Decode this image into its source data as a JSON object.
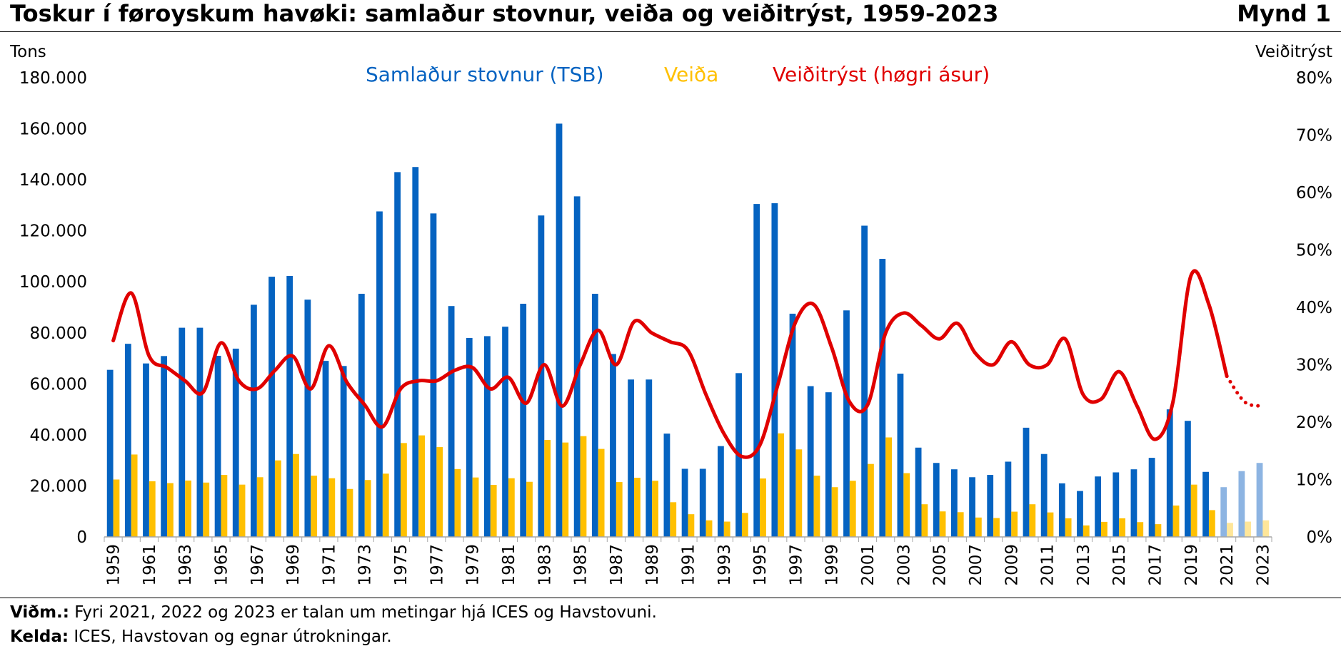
{
  "header": {
    "title": "Toskur í føroyskum havøki: samlaður stovnur, veiða og veiðitrýst, 1959-2023",
    "figure_label": "Mynd 1"
  },
  "notes": {
    "note_label": "Viðm.:",
    "note_text": "Fyri 2021, 2022 og 2023 er talan um metingar hjá ICES og Havstovuni.",
    "source_label": "Kelda:",
    "source_text": "ICES, Havstovan og egnar útrokningar."
  },
  "chart_data": {
    "type": "bar",
    "left_axis_label": "Tons",
    "right_axis_label": "Veiðitrýst",
    "ylim_left": [
      0,
      180000
    ],
    "ylim_right": [
      0,
      80
    ],
    "left_ticks": [
      "0",
      "20.000",
      "40.000",
      "60.000",
      "80.000",
      "100.000",
      "120.000",
      "140.000",
      "160.000",
      "180.000"
    ],
    "right_ticks": [
      "0%",
      "10%",
      "20%",
      "30%",
      "40%",
      "50%",
      "60%",
      "70%",
      "80%"
    ],
    "x_tick_labels": [
      "1959",
      "1961",
      "1963",
      "1965",
      "1967",
      "1969",
      "1971",
      "1973",
      "1975",
      "1977",
      "1979",
      "1981",
      "1983",
      "1985",
      "1987",
      "1989",
      "1991",
      "1993",
      "1995",
      "1997",
      "1999",
      "2001",
      "2003",
      "2005",
      "2007",
      "2009",
      "2011",
      "2013",
      "2015",
      "2017",
      "2019",
      "2021",
      "2023"
    ],
    "years": [
      1959,
      1960,
      1961,
      1962,
      1963,
      1964,
      1965,
      1966,
      1967,
      1968,
      1969,
      1970,
      1971,
      1972,
      1973,
      1974,
      1975,
      1976,
      1977,
      1978,
      1979,
      1980,
      1981,
      1982,
      1983,
      1984,
      1985,
      1986,
      1987,
      1988,
      1989,
      1990,
      1991,
      1992,
      1993,
      1994,
      1995,
      1996,
      1997,
      1998,
      1999,
      2000,
      2001,
      2002,
      2003,
      2004,
      2005,
      2006,
      2007,
      2008,
      2009,
      2010,
      2011,
      2012,
      2013,
      2014,
      2015,
      2016,
      2017,
      2018,
      2019,
      2020,
      2021,
      2022,
      2023
    ],
    "estimate_years_from": 2021,
    "legend": "top",
    "grid": false,
    "series": [
      {
        "name": "Samlaður stovnur (TSB)",
        "type": "bar",
        "axis": "left",
        "color": "#0563C1",
        "estimate_color": "#8DB4E2",
        "values": [
          65500,
          75700,
          68000,
          70900,
          82000,
          82000,
          71000,
          73800,
          91000,
          102000,
          102300,
          93000,
          69000,
          67000,
          95300,
          127600,
          143000,
          145000,
          126800,
          90500,
          78000,
          78700,
          82400,
          91400,
          126000,
          162000,
          133500,
          95300,
          71700,
          61700,
          61700,
          40500,
          26700,
          26700,
          35600,
          64200,
          130500,
          130800,
          87500,
          59100,
          56700,
          88800,
          122000,
          109000,
          64000,
          35000,
          29000,
          26500,
          23400,
          24300,
          29500,
          42800,
          32500,
          21000,
          18000,
          23700,
          25300,
          26500,
          31000,
          50000,
          45500,
          25500,
          19500,
          25800,
          29000
        ]
      },
      {
        "name": "Veiða",
        "type": "bar",
        "axis": "left",
        "color": "#FFC000",
        "estimate_color": "#FFE699",
        "values": [
          22500,
          32300,
          21800,
          21100,
          22100,
          21300,
          24300,
          20500,
          23400,
          30000,
          32500,
          24000,
          23000,
          18800,
          22300,
          24800,
          36800,
          39800,
          35200,
          26600,
          23300,
          20400,
          23000,
          21600,
          38000,
          37000,
          39500,
          34500,
          21500,
          23200,
          22000,
          13600,
          8900,
          6500,
          6000,
          9400,
          22900,
          40600,
          34300,
          24000,
          19500,
          22000,
          28600,
          39000,
          25000,
          12800,
          10000,
          9700,
          7600,
          7400,
          9900,
          12800,
          9600,
          7300,
          4500,
          5900,
          7300,
          5800,
          5000,
          12300,
          20500,
          10500,
          5500,
          6000,
          6500
        ]
      },
      {
        "name": "Veiðitrýst (høgri ásur)",
        "type": "line",
        "axis": "right",
        "color": "#E00000",
        "values": [
          34.2,
          42.5,
          31.5,
          29.5,
          27.2,
          25.2,
          33.8,
          27.2,
          25.8,
          29.0,
          31.5,
          25.8,
          33.3,
          27.0,
          23.0,
          19.2,
          25.8,
          27.2,
          27.2,
          29.0,
          29.5,
          25.8,
          27.8,
          23.3,
          30.0,
          22.8,
          30.0,
          36.0,
          30.0,
          37.5,
          35.5,
          34.0,
          32.5,
          24.8,
          18.0,
          14.0,
          16.0,
          26.5,
          37.5,
          40.5,
          33.0,
          23.5,
          23.0,
          35.5,
          39.0,
          36.8,
          34.5,
          37.2,
          32.0,
          30.0,
          34.0,
          30.0,
          30.0,
          34.5,
          24.8,
          24.0,
          28.8,
          22.8,
          17.0,
          23.5,
          45.5,
          40.5,
          28.0,
          23.5,
          22.8
        ]
      }
    ]
  }
}
